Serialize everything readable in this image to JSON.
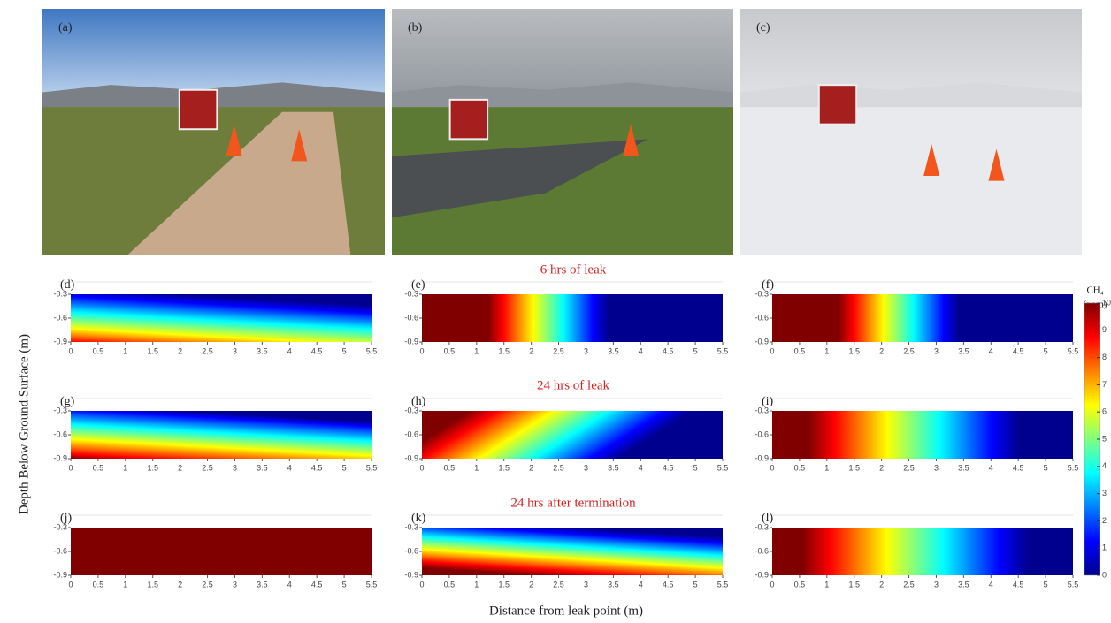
{
  "photos": [
    {
      "label": "(a)"
    },
    {
      "label": "(b)"
    },
    {
      "label": "(c)"
    }
  ],
  "heatmaps": {
    "rows": [
      {
        "title": "6 hrs of leak",
        "panels": [
          "(d)",
          "(e)",
          "(f)"
        ]
      },
      {
        "title": "24 hrs of leak",
        "panels": [
          "(g)",
          "(h)",
          "(i)"
        ]
      },
      {
        "title": "24 hrs after termination",
        "panels": [
          "(j)",
          "(k)",
          "(l)"
        ]
      }
    ],
    "y_label": "Depth Below Ground Surface (m)",
    "x_label": "Distance from leak point (m)",
    "xlim": [
      0,
      5.5
    ],
    "xticks": [
      0,
      0.5,
      1,
      1.5,
      2,
      2.5,
      3,
      3.5,
      4,
      4.5,
      5,
      5.5
    ],
    "ylim": [
      -0.9,
      -0.3
    ],
    "yticks": [
      -0.3,
      -0.6,
      -0.9
    ]
  },
  "colorbar": {
    "label": "CH₄",
    "unit": "(ppm)",
    "lim": [
      0,
      10
    ],
    "ticks": [
      0,
      1,
      2,
      3,
      4,
      5,
      6,
      7,
      8,
      9,
      10
    ]
  }
}
